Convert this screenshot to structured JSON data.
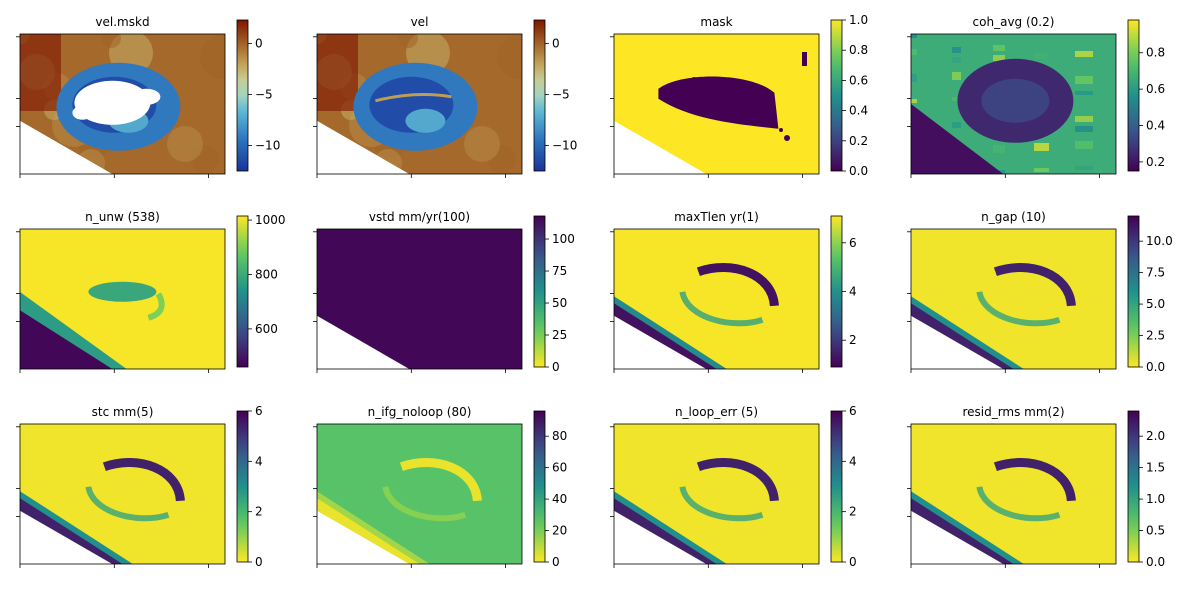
{
  "chart_data": [
    {
      "type": "heatmap",
      "title": "vel.mskd",
      "colorbar": {
        "cmap": "roma-brown-blue",
        "range": [
          -12.5,
          2.3
        ],
        "ticks": [
          -10,
          -5,
          0
        ],
        "tick_labels": [
          "−10",
          "−5",
          "0"
        ]
      },
      "pattern": "ring",
      "masked": true,
      "nodata_triangle": "bottom-left"
    },
    {
      "type": "heatmap",
      "title": "vel",
      "colorbar": {
        "cmap": "roma-brown-blue",
        "range": [
          -12.5,
          2.3
        ],
        "ticks": [
          -10,
          -5,
          0
        ],
        "tick_labels": [
          "−10",
          "−5",
          "0"
        ]
      },
      "pattern": "ring",
      "masked": false,
      "nodata_triangle": "bottom-left"
    },
    {
      "type": "heatmap",
      "title": "mask",
      "colorbar": {
        "cmap": "viridis",
        "range": [
          0,
          1
        ],
        "ticks": [
          0,
          0.2,
          0.4,
          0.6,
          0.8,
          1
        ],
        "tick_labels": [
          "0.0",
          "0.2",
          "0.4",
          "0.6",
          "0.8",
          "1.0"
        ]
      },
      "pattern": "binary-mask",
      "nodata_triangle": "bottom-left"
    },
    {
      "type": "heatmap",
      "title": "coh_avg (0.2)",
      "colorbar": {
        "cmap": "viridis",
        "range": [
          0.15,
          0.98
        ],
        "ticks": [
          0.2,
          0.4,
          0.6,
          0.8
        ],
        "tick_labels": [
          "0.2",
          "0.4",
          "0.6",
          "0.8"
        ]
      },
      "pattern": "coherence"
    },
    {
      "type": "heatmap",
      "title": "n_unw (538)",
      "colorbar": {
        "cmap": "viridis",
        "range": [
          460,
          1015
        ],
        "ticks": [
          600,
          800,
          1000
        ],
        "tick_labels": [
          "600",
          "800",
          "1000"
        ]
      },
      "pattern": "high-with-low-stripe"
    },
    {
      "type": "heatmap",
      "title": "vstd mm/yr(100)",
      "colorbar": {
        "cmap": "viridis_r",
        "range": [
          0,
          118
        ],
        "ticks": [
          0,
          25,
          50,
          75,
          100
        ],
        "tick_labels": [
          "0",
          "25",
          "50",
          "75",
          "100"
        ]
      },
      "pattern": "uniform-low",
      "nodata_triangle": "bottom-left"
    },
    {
      "type": "heatmap",
      "title": "maxTlen yr(1)",
      "colorbar": {
        "cmap": "viridis",
        "range": [
          0.9,
          7.1
        ],
        "ticks": [
          2,
          4,
          6
        ],
        "tick_labels": [
          "2",
          "4",
          "6"
        ]
      },
      "pattern": "high-with-ring-low",
      "nodata_triangle": "bottom-left"
    },
    {
      "type": "heatmap",
      "title": "n_gap (10)",
      "colorbar": {
        "cmap": "viridis_r",
        "range": [
          0,
          12
        ],
        "ticks": [
          0,
          2.5,
          5,
          7.5,
          10
        ],
        "tick_labels": [
          "0.0",
          "2.5",
          "5.0",
          "7.5",
          "10.0"
        ]
      },
      "pattern": "low-with-ring-high",
      "nodata_triangle": "bottom-left"
    },
    {
      "type": "heatmap",
      "title": "stc mm(5)",
      "colorbar": {
        "cmap": "viridis_r",
        "range": [
          0,
          6
        ],
        "ticks": [
          0,
          2,
          4,
          6
        ],
        "tick_labels": [
          "0",
          "2",
          "4",
          "6"
        ]
      },
      "pattern": "low-with-ring-high",
      "nodata_triangle": "bottom-left"
    },
    {
      "type": "heatmap",
      "title": "n_ifg_noloop (80)",
      "colorbar": {
        "cmap": "viridis_r",
        "range": [
          0,
          96
        ],
        "ticks": [
          0,
          20,
          40,
          60,
          80
        ],
        "tick_labels": [
          "0",
          "20",
          "40",
          "60",
          "80"
        ]
      },
      "pattern": "uniform-mid-with-ring",
      "nodata_triangle": "bottom-left"
    },
    {
      "type": "heatmap",
      "title": "n_loop_err (5)",
      "colorbar": {
        "cmap": "viridis_r",
        "range": [
          0,
          6
        ],
        "ticks": [
          0,
          2,
          4,
          6
        ],
        "tick_labels": [
          "0",
          "2",
          "4",
          "6"
        ]
      },
      "pattern": "low-with-ring-high",
      "nodata_triangle": "bottom-left"
    },
    {
      "type": "heatmap",
      "title": "resid_rms mm(2)",
      "colorbar": {
        "cmap": "viridis_r",
        "range": [
          0,
          2.4
        ],
        "ticks": [
          0,
          0.5,
          1,
          1.5,
          2
        ],
        "tick_labels": [
          "0.0",
          "0.5",
          "1.0",
          "1.5",
          "2.0"
        ]
      },
      "pattern": "low-with-ring-high",
      "nodata_triangle": "bottom-left"
    }
  ]
}
